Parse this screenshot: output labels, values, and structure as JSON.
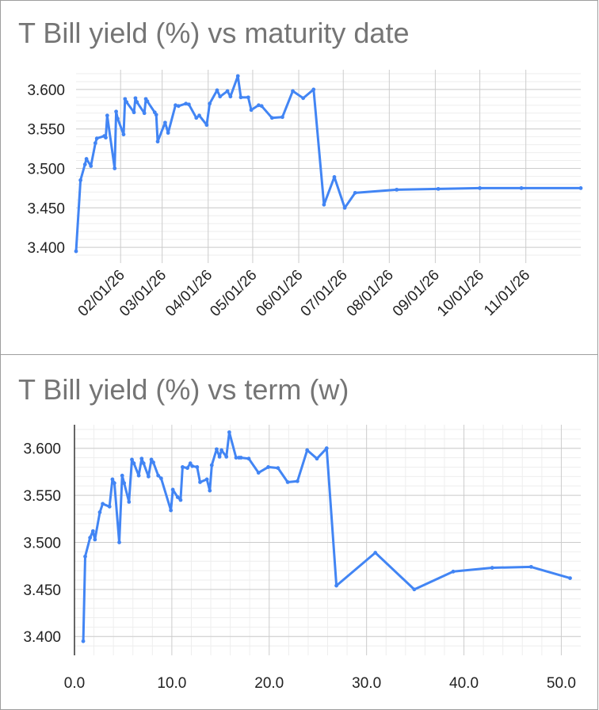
{
  "chart_data": [
    {
      "type": "line",
      "title": "T Bill yield (%) vs maturity date",
      "xlabel": "",
      "ylabel": "",
      "x_type": "date",
      "ylim": [
        3.38,
        3.625
      ],
      "yticks": [
        "3.400",
        "3.450",
        "3.500",
        "3.550",
        "3.600"
      ],
      "xticks": [
        "02/01/26",
        "03/01/26",
        "04/01/26",
        "05/01/26",
        "06/01/26",
        "07/01/26",
        "08/01/26",
        "09/01/26",
        "10/01/26",
        "11/01/26"
      ],
      "xlim": [
        "2026-01-02",
        "2026-12-08"
      ],
      "grid": true,
      "legend": "none",
      "line_color": "#4285f4",
      "series": [
        {
          "x": [
            "2026-01-02",
            "2026-01-05",
            "2026-01-08",
            "2026-01-09",
            "2026-01-12",
            "2026-01-15",
            "2026-01-16",
            "2026-01-21",
            "2026-01-22",
            "2026-01-23",
            "2026-01-28",
            "2026-01-29",
            "2026-01-30",
            "2026-02-03",
            "2026-02-04",
            "2026-02-05",
            "2026-02-10",
            "2026-02-11",
            "2026-02-12",
            "2026-02-17",
            "2026-02-18",
            "2026-02-19",
            "2026-02-24",
            "2026-02-25",
            "2026-02-26",
            "2026-03-03",
            "2026-03-05",
            "2026-03-10",
            "2026-03-12",
            "2026-03-17",
            "2026-03-19",
            "2026-03-24",
            "2026-03-26",
            "2026-03-31",
            "2026-04-02",
            "2026-04-07",
            "2026-04-09",
            "2026-04-14",
            "2026-04-16",
            "2026-04-21",
            "2026-04-23",
            "2026-04-28",
            "2026-04-30",
            "2026-05-05",
            "2026-05-07",
            "2026-05-14",
            "2026-05-21",
            "2026-05-28",
            "2026-06-04",
            "2026-06-11",
            "2026-06-18",
            "2026-06-25",
            "2026-07-02",
            "2026-07-09",
            "2026-08-06",
            "2026-09-03",
            "2026-10-01",
            "2026-10-29",
            "2026-12-08"
          ],
          "y": [
            3.395,
            3.485,
            3.505,
            3.512,
            3.503,
            3.532,
            3.538,
            3.541,
            3.539,
            3.567,
            3.5,
            3.572,
            3.563,
            3.543,
            3.588,
            3.584,
            3.571,
            3.589,
            3.584,
            3.57,
            3.588,
            3.585,
            3.571,
            3.568,
            3.534,
            3.558,
            3.545,
            3.58,
            3.579,
            3.582,
            3.581,
            3.564,
            3.567,
            3.555,
            3.582,
            3.599,
            3.591,
            3.598,
            3.591,
            3.617,
            3.59,
            3.59,
            3.574,
            3.58,
            3.579,
            3.564,
            3.565,
            3.598,
            3.589,
            3.6,
            3.454,
            3.489,
            3.45,
            3.469,
            3.473,
            3.474,
            3.475,
            3.475,
            3.475
          ]
        }
      ]
    },
    {
      "type": "line",
      "title": "T Bill yield (%) vs term (w)",
      "xlabel": "",
      "ylabel": "",
      "ylim": [
        3.38,
        3.625
      ],
      "xlim": [
        0,
        52
      ],
      "yticks": [
        "3.400",
        "3.450",
        "3.500",
        "3.550",
        "3.600"
      ],
      "xticks": [
        "0.0",
        "10.0",
        "20.0",
        "30.0",
        "40.0",
        "50.0"
      ],
      "grid": true,
      "legend": "none",
      "line_color": "#4285f4",
      "series": [
        {
          "x": [
            0.9,
            1.1,
            1.6,
            1.9,
            2.1,
            2.6,
            2.9,
            3.6,
            3.9,
            4.1,
            4.6,
            4.9,
            5.1,
            5.6,
            5.9,
            6.1,
            6.6,
            6.9,
            7.1,
            7.6,
            7.9,
            8.1,
            8.6,
            8.9,
            9.9,
            10.1,
            10.6,
            10.9,
            11.1,
            11.6,
            11.9,
            12.1,
            12.6,
            12.9,
            13.6,
            13.9,
            14.1,
            14.6,
            14.9,
            15.1,
            15.6,
            15.9,
            16.6,
            16.9,
            17.1,
            17.9,
            18.9,
            19.9,
            20.9,
            21.9,
            22.9,
            23.9,
            24.9,
            25.9,
            26.9,
            30.9,
            34.9,
            38.9,
            42.9,
            46.9,
            50.9
          ],
          "y": [
            3.395,
            3.485,
            3.505,
            3.512,
            3.503,
            3.532,
            3.541,
            3.538,
            3.567,
            3.563,
            3.5,
            3.571,
            3.563,
            3.543,
            3.588,
            3.584,
            3.571,
            3.589,
            3.584,
            3.57,
            3.588,
            3.585,
            3.571,
            3.568,
            3.534,
            3.556,
            3.548,
            3.545,
            3.58,
            3.579,
            3.584,
            3.581,
            3.58,
            3.564,
            3.567,
            3.555,
            3.582,
            3.599,
            3.591,
            3.598,
            3.591,
            3.617,
            3.59,
            3.59,
            3.59,
            3.589,
            3.574,
            3.58,
            3.579,
            3.564,
            3.565,
            3.598,
            3.589,
            3.6,
            3.454,
            3.489,
            3.45,
            3.469,
            3.473,
            3.474,
            3.462
          ]
        }
      ]
    }
  ]
}
